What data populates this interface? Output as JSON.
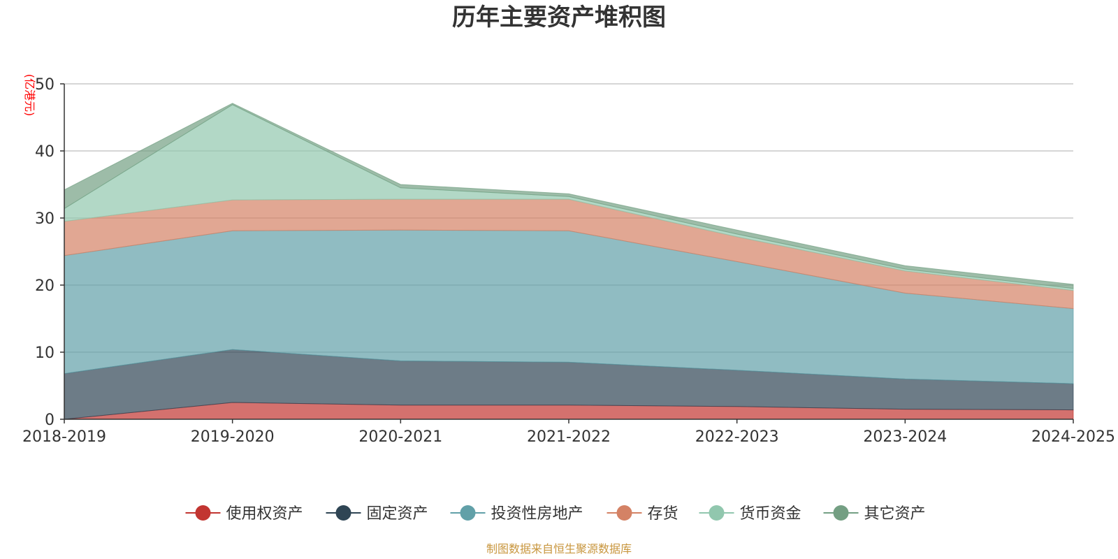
{
  "chart_data": {
    "type": "area",
    "stacked": true,
    "title": "历年主要资产堆积图",
    "unit_label": "(亿港元)",
    "x": [
      "2018-2019",
      "2019-2020",
      "2020-2021",
      "2021-2022",
      "2022-2023",
      "2023-2024",
      "2024-2025"
    ],
    "ylim": [
      0,
      50
    ],
    "yticks": [
      0,
      10,
      20,
      30,
      40,
      50
    ],
    "grid": true,
    "legend_position": "bottom",
    "series": [
      {
        "name": "使用权资产",
        "color": "#c23531",
        "values": [
          0.0,
          2.5,
          2.1,
          2.1,
          1.9,
          1.5,
          1.4
        ]
      },
      {
        "name": "固定资产",
        "color": "#2f4554",
        "values": [
          6.8,
          7.9,
          6.6,
          6.4,
          5.4,
          4.5,
          3.9
        ]
      },
      {
        "name": "投资性房地产",
        "color": "#61a0a8",
        "values": [
          17.6,
          17.7,
          19.5,
          19.6,
          16.2,
          12.8,
          11.2
        ]
      },
      {
        "name": "存货",
        "color": "#d48265",
        "values": [
          5.1,
          4.6,
          4.6,
          4.7,
          3.7,
          3.3,
          2.7
        ]
      },
      {
        "name": "货币资金",
        "color": "#91c7ae",
        "values": [
          1.9,
          14.2,
          1.7,
          0.4,
          0.4,
          0.3,
          0.3
        ]
      },
      {
        "name": "其它资产",
        "color": "#749f83",
        "values": [
          2.8,
          0.2,
          0.5,
          0.4,
          0.6,
          0.5,
          0.6
        ]
      }
    ]
  },
  "footer": {
    "source": "制图数据来自恒生聚源数据库"
  }
}
